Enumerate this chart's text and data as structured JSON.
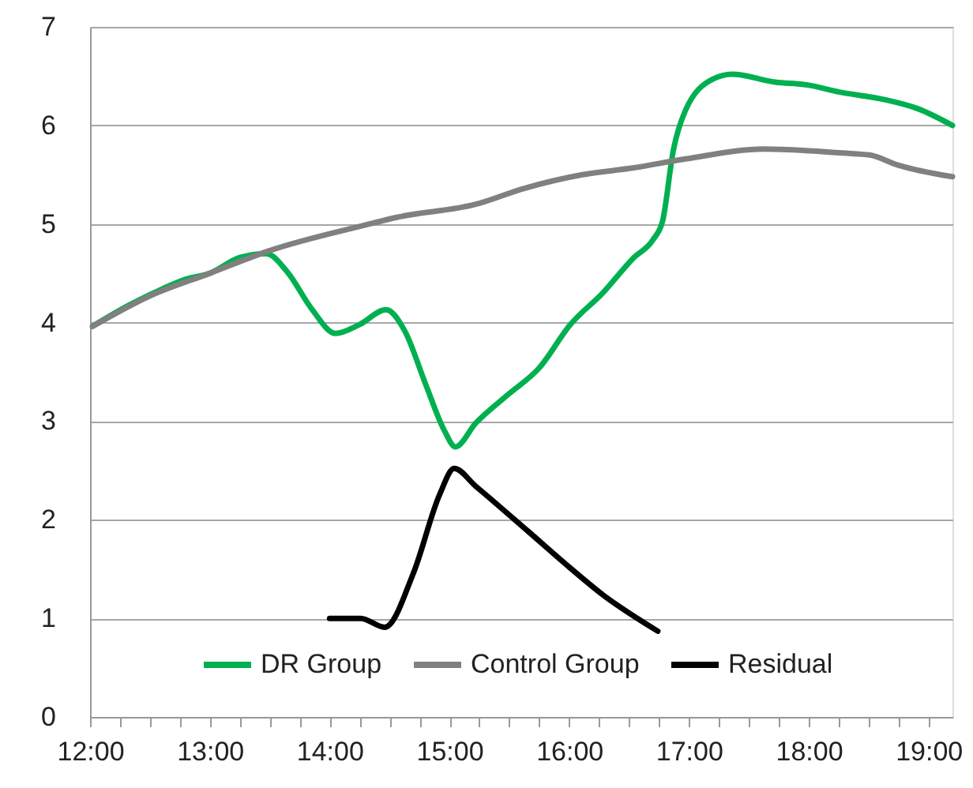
{
  "chart_data": {
    "type": "line",
    "xlim": [
      12,
      19.2
    ],
    "ylim": [
      0,
      7
    ],
    "yticks": [
      0,
      1,
      2,
      3,
      4,
      5,
      6,
      7
    ],
    "xticks": [
      {
        "value": 12,
        "label": "12:00"
      },
      {
        "value": 12.25,
        "label": null
      },
      {
        "value": 12.5,
        "label": null
      },
      {
        "value": 12.75,
        "label": null
      },
      {
        "value": 13,
        "label": "13:00"
      },
      {
        "value": 13.25,
        "label": null
      },
      {
        "value": 13.5,
        "label": null
      },
      {
        "value": 13.75,
        "label": null
      },
      {
        "value": 14,
        "label": "14:00"
      },
      {
        "value": 14.25,
        "label": null
      },
      {
        "value": 14.5,
        "label": null
      },
      {
        "value": 14.75,
        "label": null
      },
      {
        "value": 15,
        "label": "15:00"
      },
      {
        "value": 15.25,
        "label": null
      },
      {
        "value": 15.5,
        "label": null
      },
      {
        "value": 15.75,
        "label": null
      },
      {
        "value": 16,
        "label": "16:00"
      },
      {
        "value": 16.25,
        "label": null
      },
      {
        "value": 16.5,
        "label": null
      },
      {
        "value": 16.75,
        "label": null
      },
      {
        "value": 17,
        "label": "17:00"
      },
      {
        "value": 17.25,
        "label": null
      },
      {
        "value": 17.5,
        "label": null
      },
      {
        "value": 17.75,
        "label": null
      },
      {
        "value": 18,
        "label": "18:00"
      },
      {
        "value": 18.25,
        "label": null
      },
      {
        "value": 18.5,
        "label": null
      },
      {
        "value": 18.75,
        "label": null
      },
      {
        "value": 19,
        "label": "19:00"
      }
    ],
    "grid": "y",
    "legend": "bottom",
    "line_style": "solid",
    "marker": "none",
    "series": [
      {
        "name": "DR Group",
        "color": "#00b050",
        "x": [
          12.03,
          12.33,
          12.6,
          12.8,
          13.0,
          13.25,
          13.47,
          13.65,
          13.85,
          14.05,
          14.25,
          14.47,
          14.63,
          14.8,
          14.96,
          15.05,
          15.22,
          15.49,
          15.75,
          16.01,
          16.28,
          16.54,
          16.7,
          16.78,
          16.87,
          16.97,
          17.2,
          17.36,
          17.72,
          17.99,
          18.25,
          18.64,
          18.91,
          19.2
        ],
        "values": [
          3.97,
          4.18,
          4.34,
          4.44,
          4.5,
          4.66,
          4.7,
          4.51,
          4.14,
          3.89,
          3.98,
          4.13,
          3.91,
          3.38,
          2.9,
          2.74,
          2.98,
          3.27,
          3.54,
          3.98,
          4.3,
          4.66,
          4.84,
          5.03,
          5.75,
          6.15,
          6.47,
          6.52,
          6.44,
          6.41,
          6.34,
          6.26,
          6.17,
          6.0
        ]
      },
      {
        "name": "Control Group",
        "color": "#808080",
        "x": [
          12.02,
          12.5,
          13.0,
          13.5,
          14.3,
          14.57,
          15.22,
          15.62,
          16.11,
          16.54,
          16.97,
          17.63,
          18.29,
          18.51,
          18.74,
          19.2
        ],
        "values": [
          3.96,
          4.27,
          4.5,
          4.73,
          4.99,
          5.07,
          5.2,
          5.36,
          5.5,
          5.57,
          5.66,
          5.76,
          5.72,
          5.7,
          5.6,
          5.48
        ]
      },
      {
        "name": "Residual",
        "color": "#000000",
        "x": [
          14.0,
          14.26,
          14.46,
          14.7,
          14.92,
          15.04,
          15.22,
          15.66,
          16.01,
          16.28,
          16.74
        ],
        "values": [
          1.0,
          1.0,
          0.91,
          1.46,
          2.26,
          2.52,
          2.34,
          1.88,
          1.51,
          1.24,
          0.87
        ]
      }
    ]
  }
}
